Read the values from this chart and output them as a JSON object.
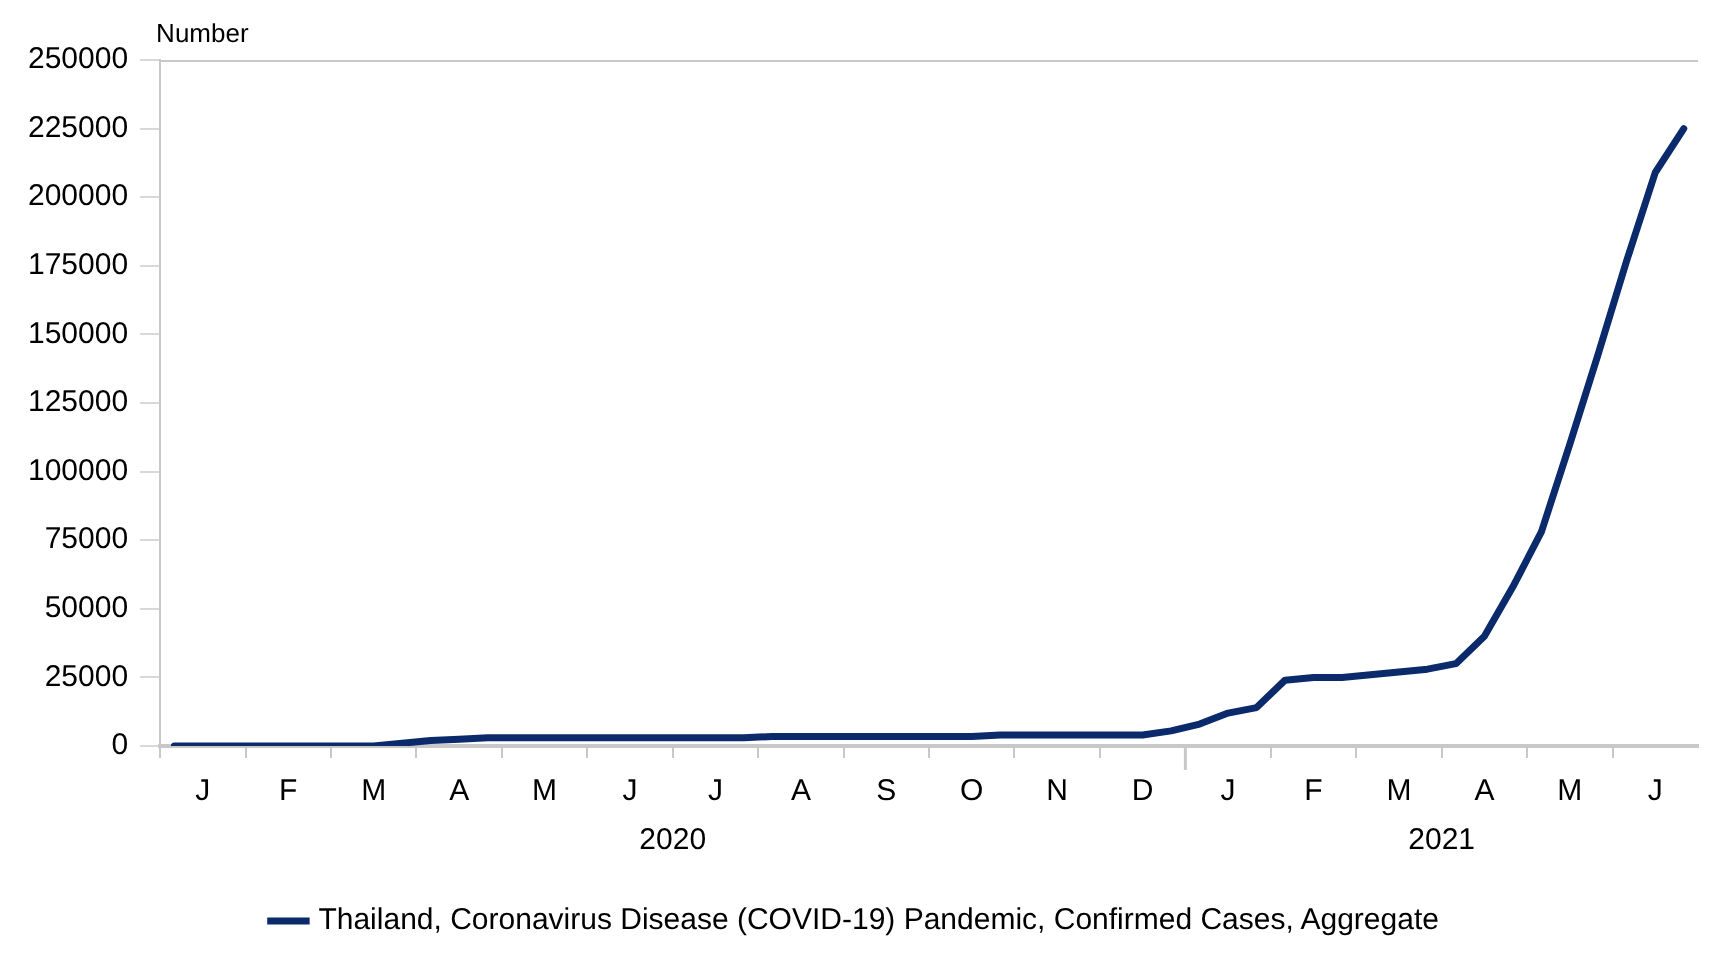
{
  "chart_data": {
    "type": "line",
    "ylabel": "Number",
    "legend": "bottom",
    "grid": false,
    "line_style": "solid",
    "marker": "none",
    "categories": [
      null,
      "J",
      null,
      null,
      "F",
      null,
      null,
      "M",
      null,
      null,
      "A",
      null,
      null,
      "M",
      null,
      null,
      "J",
      null,
      null,
      "J",
      null,
      null,
      "A",
      null,
      null,
      "S",
      null,
      null,
      "O",
      null,
      null,
      "N",
      null,
      null,
      "D",
      null,
      null,
      "J",
      null,
      null,
      "F",
      null,
      null,
      "M",
      null,
      null,
      "A",
      null,
      null,
      "M",
      null,
      null,
      "J",
      null
    ],
    "annotations": [
      "2020",
      "2021"
    ],
    "series": [
      {
        "name": "Thailand, Coronavirus Disease (COVID-19) Pandemic, Confirmed Cases, Aggregate",
        "color": "#0b2a6b",
        "values": [
          0,
          0,
          0,
          0,
          0,
          0,
          0,
          0,
          1000,
          2000,
          2500,
          3000,
          3000,
          3000,
          3000,
          3000,
          3000,
          3000,
          3000,
          3000,
          3000,
          3500,
          3500,
          3500,
          3500,
          3500,
          3500,
          3500,
          3500,
          4000,
          4000,
          4000,
          4000,
          4000,
          4000,
          5500,
          8000,
          12000,
          14000,
          24000,
          25000,
          25000,
          26000,
          27000,
          28000,
          30000,
          40000,
          58000,
          78000,
          110000,
          143000,
          177000,
          209000,
          225000
        ]
      }
    ],
    "ylim": [
      0,
      250000
    ],
    "yticks": [
      0,
      25000,
      50000,
      75000,
      100000,
      125000,
      150000,
      175000,
      200000,
      225000,
      250000
    ]
  }
}
